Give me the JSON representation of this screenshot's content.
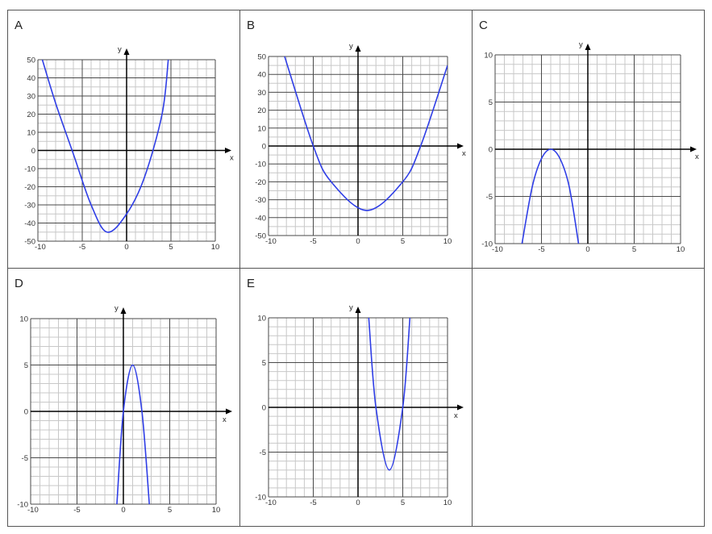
{
  "colors": {
    "curve": "#2f3ee6",
    "minor_grid": "#c8c8c8",
    "major_grid": "#4a4a4a",
    "axis": "#000000",
    "border": "#555555"
  },
  "chart_data": [
    {
      "panel": "A",
      "type": "line",
      "xlabel": "x",
      "ylabel": "y",
      "xlim": [
        -10,
        10
      ],
      "ylim": [
        -50,
        50
      ],
      "xticks": [
        -10,
        -5,
        0,
        5,
        10
      ],
      "yticks": [
        50,
        40,
        30,
        20,
        10,
        0,
        -10,
        -20,
        -30,
        -40,
        -50
      ],
      "x_minor_step": 1,
      "y_minor_step": 5,
      "x_major_step": 5,
      "y_major_step": 10,
      "grid": true,
      "series": [
        {
          "x": [
            -9.5,
            -8,
            -6,
            -4,
            -2.2,
            0,
            2,
            4,
            4.7
          ],
          "y": [
            50,
            26,
            -2,
            -30,
            -45,
            -35,
            -15,
            20,
            50
          ]
        }
      ]
    },
    {
      "panel": "B",
      "type": "line",
      "xlabel": "x",
      "ylabel": "y",
      "xlim": [
        -10,
        10
      ],
      "ylim": [
        -50,
        50
      ],
      "xticks": [
        -10,
        -5,
        0,
        5,
        10
      ],
      "yticks": [
        50,
        40,
        30,
        20,
        10,
        0,
        -10,
        -20,
        -30,
        -40,
        -50
      ],
      "x_minor_step": 1,
      "y_minor_step": 5,
      "x_major_step": 5,
      "y_major_step": 10,
      "grid": true,
      "series": [
        {
          "x": [
            -8.2,
            -5,
            -3,
            1,
            5,
            7,
            10
          ],
          "y": [
            50,
            0,
            -20,
            -36,
            -20,
            0,
            45
          ]
        }
      ]
    },
    {
      "panel": "C",
      "type": "line",
      "xlabel": "x",
      "ylabel": "y",
      "xlim": [
        -10,
        10
      ],
      "ylim": [
        -10,
        10
      ],
      "xticks": [
        -10,
        -5,
        0,
        5,
        10
      ],
      "yticks": [
        10,
        5,
        0,
        -5,
        -10
      ],
      "x_minor_step": 1,
      "y_minor_step": 1,
      "x_major_step": 5,
      "y_major_step": 5,
      "grid": true,
      "series": [
        {
          "x": [
            -7.1,
            -6,
            -5,
            -4,
            -3,
            -2,
            -1
          ],
          "y": [
            -10,
            -4,
            -1,
            0,
            -1,
            -4,
            -10
          ]
        }
      ]
    },
    {
      "panel": "D",
      "type": "line",
      "xlabel": "x",
      "ylabel": "y",
      "xlim": [
        -10,
        10
      ],
      "ylim": [
        -10,
        10
      ],
      "xticks": [
        -10,
        -5,
        0,
        5,
        10
      ],
      "yticks": [
        10,
        5,
        0,
        -5,
        -10
      ],
      "x_minor_step": 1,
      "y_minor_step": 1,
      "x_major_step": 5,
      "y_major_step": 5,
      "grid": true,
      "series": [
        {
          "x": [
            -0.7,
            0,
            1,
            2,
            2.8
          ],
          "y": [
            -10,
            0,
            5,
            0,
            -10
          ]
        }
      ]
    },
    {
      "panel": "E",
      "type": "line",
      "xlabel": "x",
      "ylabel": "y",
      "xlim": [
        -10,
        10
      ],
      "ylim": [
        -10,
        10
      ],
      "xticks": [
        -10,
        -5,
        0,
        5,
        10
      ],
      "yticks": [
        10,
        5,
        0,
        -5,
        -10
      ],
      "x_minor_step": 1,
      "y_minor_step": 1,
      "x_major_step": 5,
      "y_major_step": 5,
      "grid": true,
      "series": [
        {
          "x": [
            1.2,
            2,
            3.5,
            5,
            5.8
          ],
          "y": [
            10,
            0,
            -7,
            0,
            10
          ]
        }
      ]
    }
  ]
}
